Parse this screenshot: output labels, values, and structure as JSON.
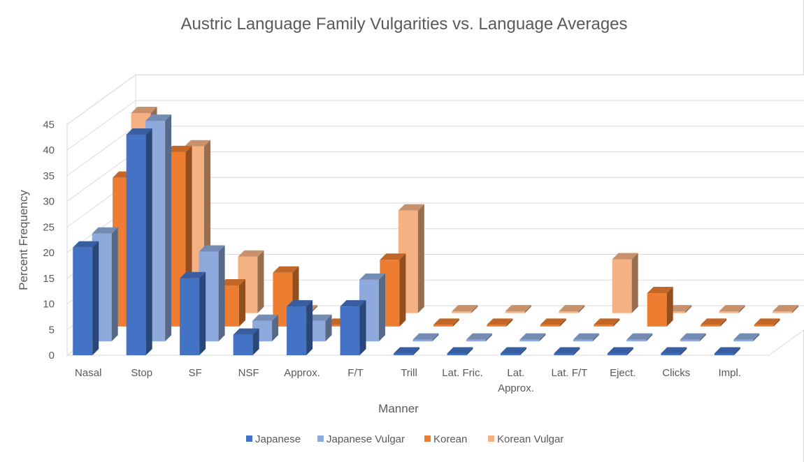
{
  "chart_data": {
    "type": "bar",
    "subtype": "3d-column",
    "title": "Austric Language Family Vulgarities vs. Language Averages",
    "xlabel": "Manner",
    "ylabel": "Percent Frequency",
    "ylim": [
      0,
      45
    ],
    "yticks": [
      "0",
      "5",
      "10",
      "15",
      "20",
      "25",
      "30",
      "35",
      "40",
      "45"
    ],
    "grid": true,
    "legend_position": "bottom",
    "categories": [
      "Nasal",
      "Stop",
      "SF",
      "NSF",
      "Approx.",
      "F/T",
      "Trill",
      "Lat. Fric.",
      "Lat. Approx.",
      "Lat. F/T",
      "Eject.",
      "Clicks",
      "Impl."
    ],
    "category_display_lines": [
      [
        "Nasal"
      ],
      [
        "Stop"
      ],
      [
        "SF"
      ],
      [
        "NSF"
      ],
      [
        "Approx."
      ],
      [
        "F/T"
      ],
      [
        "Trill"
      ],
      [
        "Lat. Fric."
      ],
      [
        "Lat.",
        "Approx."
      ],
      [
        "Lat. F/T"
      ],
      [
        "Eject."
      ],
      [
        "Clicks"
      ],
      [
        "Impl."
      ]
    ],
    "series": [
      {
        "name": "Japanese",
        "color": "#4472C4",
        "values": [
          21,
          43,
          15,
          4,
          9.5,
          9.5,
          0,
          0,
          0,
          0,
          0,
          0,
          0
        ]
      },
      {
        "name": "Japanese Vulgar",
        "color": "#8EA9DB",
        "values": [
          21,
          43,
          17.5,
          4,
          4,
          12,
          0,
          0,
          0,
          0,
          0,
          0,
          0
        ]
      },
      {
        "name": "Korean",
        "color": "#ED7D31",
        "values": [
          29,
          34,
          8,
          10.5,
          0,
          13,
          0,
          0,
          0,
          0,
          6.5,
          0,
          0
        ]
      },
      {
        "name": "Korean Vulgar",
        "color": "#F4B183",
        "values": [
          39,
          32.5,
          11,
          0,
          0,
          20,
          0,
          0,
          0,
          10.5,
          0,
          0,
          0
        ]
      }
    ]
  }
}
